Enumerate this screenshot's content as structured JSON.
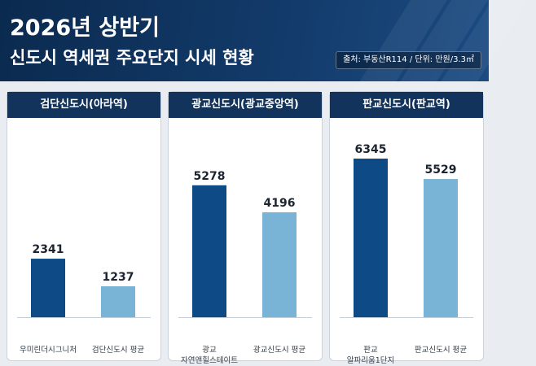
{
  "header": {
    "title_year": "2026년 상반기",
    "title_main": "신도시 역세권 주요단지 시세 현황",
    "source": "출처: 부동산R114 / 단위: 만원/3.3㎡"
  },
  "colors": {
    "dark_bar": "#0d4a86",
    "light_bar": "#79b4d6",
    "header_bg": "#12345c"
  },
  "chart_data": [
    {
      "type": "bar",
      "title": "검단신도시(아라역)",
      "categories": [
        "우미린더시그니처",
        "검단신도시 평균"
      ],
      "values": [
        2341,
        1237
      ],
      "ylim": [
        0,
        6345
      ]
    },
    {
      "type": "bar",
      "title": "광교신도시(광교중앙역)",
      "categories": [
        "광교\n자연앤힐스테이트",
        "광교신도시 평균"
      ],
      "values": [
        5278,
        4196
      ],
      "ylim": [
        0,
        6345
      ]
    },
    {
      "type": "bar",
      "title": "판교신도시(판교역)",
      "categories": [
        "판교\n알파리움1단지",
        "판교신도시 평균"
      ],
      "values": [
        6345,
        5529
      ],
      "ylim": [
        0,
        6345
      ]
    }
  ]
}
